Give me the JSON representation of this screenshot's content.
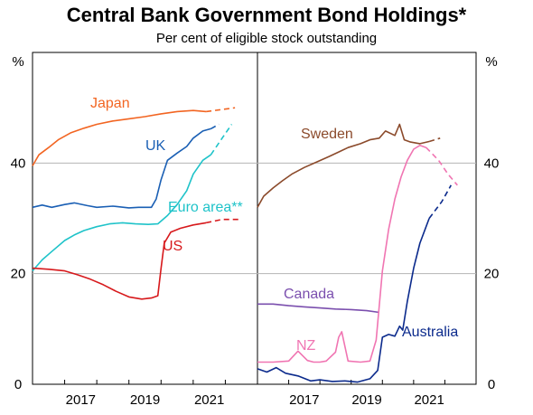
{
  "chart_data": {
    "title": "Central Bank Government Bond Holdings*",
    "subtitle": "Per cent of eligible stock outstanding",
    "ylabel_unit": "%",
    "ylim": [
      0,
      60
    ],
    "y_ticks": [
      "0",
      "20",
      "40"
    ],
    "panels": [
      {
        "type": "line",
        "x_ticks": [
          "2017",
          "2019",
          "2021"
        ],
        "xlim": [
          2016.0,
          2023.0
        ],
        "series": [
          {
            "name": "Japan",
            "color": "#f26522",
            "x": [
              2016.0,
              2016.2,
              2016.5,
              2016.8,
              2017.2,
              2017.6,
              2018.0,
              2018.5,
              2019.0,
              2019.5,
              2020.0,
              2020.5,
              2021.0,
              2021.4
            ],
            "y": [
              39.5,
              41.5,
              42.8,
              44.2,
              45.5,
              46.3,
              47.0,
              47.6,
              48.0,
              48.4,
              48.9,
              49.3,
              49.5,
              49.3
            ],
            "proj_x": [
              2021.4,
              2021.8,
              2022.3
            ],
            "proj_y": [
              49.3,
              49.6,
              50.0
            ]
          },
          {
            "name": "UK",
            "color": "#1a5fb4",
            "x": [
              2016.0,
              2016.3,
              2016.6,
              2017.0,
              2017.3,
              2017.7,
              2018.0,
              2018.5,
              2019.0,
              2019.3,
              2019.7,
              2019.85,
              2020.0,
              2020.2,
              2020.5,
              2020.8,
              2021.0,
              2021.3,
              2021.55
            ],
            "y": [
              32.0,
              32.4,
              32.0,
              32.5,
              32.8,
              32.3,
              32.0,
              32.2,
              31.9,
              32.0,
              32.0,
              33.5,
              37.0,
              40.5,
              41.8,
              43.0,
              44.5,
              45.8,
              46.2
            ],
            "proj_x": [
              2021.55,
              2021.8
            ],
            "proj_y": [
              46.2,
              47.0
            ]
          },
          {
            "name": "Euro area**",
            "color": "#1fc3c9",
            "x": [
              2016.0,
              2016.3,
              2016.6,
              2017.0,
              2017.3,
              2017.6,
              2018.0,
              2018.4,
              2018.8,
              2019.2,
              2019.6,
              2019.9,
              2020.2,
              2020.5,
              2020.8,
              2021.0,
              2021.3,
              2021.55
            ],
            "y": [
              20.5,
              22.5,
              24.0,
              26.0,
              27.0,
              27.8,
              28.5,
              29.0,
              29.2,
              29.0,
              28.9,
              29.0,
              30.5,
              32.5,
              35.0,
              38.0,
              40.5,
              41.5
            ],
            "proj_x": [
              2021.55,
              2021.9,
              2022.2
            ],
            "proj_y": [
              41.5,
              44.5,
              47.0
            ]
          },
          {
            "name": "US",
            "color": "#d7191c",
            "x": [
              2016.0,
              2016.5,
              2017.0,
              2017.4,
              2017.8,
              2018.2,
              2018.6,
              2019.0,
              2019.4,
              2019.7,
              2019.9,
              2020.0,
              2020.1,
              2020.3,
              2020.6,
              2021.0,
              2021.4
            ],
            "y": [
              21.0,
              20.8,
              20.5,
              19.8,
              19.0,
              18.0,
              16.8,
              15.8,
              15.4,
              15.6,
              16.0,
              21.0,
              25.5,
              27.5,
              28.2,
              28.8,
              29.2
            ],
            "proj_x": [
              2021.4,
              2021.9,
              2022.5
            ],
            "proj_y": [
              29.2,
              29.8,
              29.8
            ]
          }
        ],
        "labels": [
          "Japan",
          "UK",
          "Euro area**",
          "US"
        ]
      },
      {
        "type": "line",
        "x_ticks": [
          "2017",
          "2019",
          "2021"
        ],
        "xlim": [
          2016.0,
          2023.0
        ],
        "series": [
          {
            "name": "Sweden",
            "color": "#8b4a2b",
            "x": [
              2016.0,
              2016.2,
              2016.5,
              2016.8,
              2017.1,
              2017.5,
              2017.9,
              2018.3,
              2018.6,
              2018.9,
              2019.3,
              2019.6,
              2019.9,
              2020.1,
              2020.4,
              2020.55,
              2020.7,
              2020.9,
              2021.2,
              2021.5
            ],
            "y": [
              32.0,
              34.0,
              35.5,
              36.8,
              38.0,
              39.2,
              40.2,
              41.2,
              42.0,
              42.8,
              43.5,
              44.2,
              44.5,
              45.8,
              45.0,
              47.0,
              44.2,
              43.8,
              43.5,
              43.9
            ],
            "proj_x": [
              2021.5,
              2021.85
            ],
            "proj_y": [
              43.9,
              44.5
            ]
          },
          {
            "name": "Canada",
            "color": "#7b4fae",
            "x": [
              2016.0,
              2016.5,
              2017.0,
              2017.5,
              2018.0,
              2018.5,
              2019.0,
              2019.5,
              2019.9
            ],
            "y": [
              14.5,
              14.5,
              14.2,
              14.0,
              13.8,
              13.6,
              13.5,
              13.3,
              13.0
            ],
            "proj_x": [],
            "proj_y": []
          },
          {
            "name": "NZ",
            "color": "#f075b2",
            "x": [
              2016.0,
              2016.5,
              2017.0,
              2017.3,
              2017.6,
              2017.8,
              2018.0,
              2018.2,
              2018.5,
              2018.6,
              2018.7,
              2018.9,
              2019.3,
              2019.6,
              2019.8,
              2020.0,
              2020.2,
              2020.4,
              2020.6,
              2020.8,
              2021.0,
              2021.2,
              2021.4
            ],
            "y": [
              4.0,
              4.0,
              4.2,
              6.0,
              4.3,
              4.0,
              4.0,
              4.2,
              5.8,
              8.5,
              9.5,
              4.2,
              4.0,
              4.2,
              8.0,
              20.5,
              28.0,
              33.5,
              37.5,
              40.5,
              42.5,
              43.2,
              42.8
            ],
            "proj_x": [
              2021.4,
              2021.8,
              2022.1,
              2022.4
            ],
            "proj_y": [
              42.8,
              40.5,
              38.0,
              36.0
            ]
          },
          {
            "name": "Australia",
            "color": "#0b2a8c",
            "x": [
              2016.0,
              2016.3,
              2016.6,
              2016.9,
              2017.3,
              2017.7,
              2018.0,
              2018.4,
              2018.8,
              2019.2,
              2019.6,
              2019.85,
              2020.0,
              2020.2,
              2020.4,
              2020.55,
              2020.65,
              2020.8,
              2021.0,
              2021.2,
              2021.5
            ],
            "y": [
              2.8,
              2.2,
              3.0,
              2.0,
              1.5,
              0.6,
              0.8,
              0.5,
              0.6,
              0.4,
              1.0,
              2.5,
              8.5,
              9.0,
              8.7,
              10.5,
              9.8,
              15.0,
              21.0,
              25.5,
              30.0
            ],
            "proj_x": [
              2021.5,
              2021.9,
              2022.2
            ],
            "proj_y": [
              30.0,
              33.0,
              36.0
            ]
          }
        ],
        "labels": [
          "Sweden",
          "Canada",
          "NZ",
          "Australia"
        ]
      }
    ],
    "grid": true
  }
}
